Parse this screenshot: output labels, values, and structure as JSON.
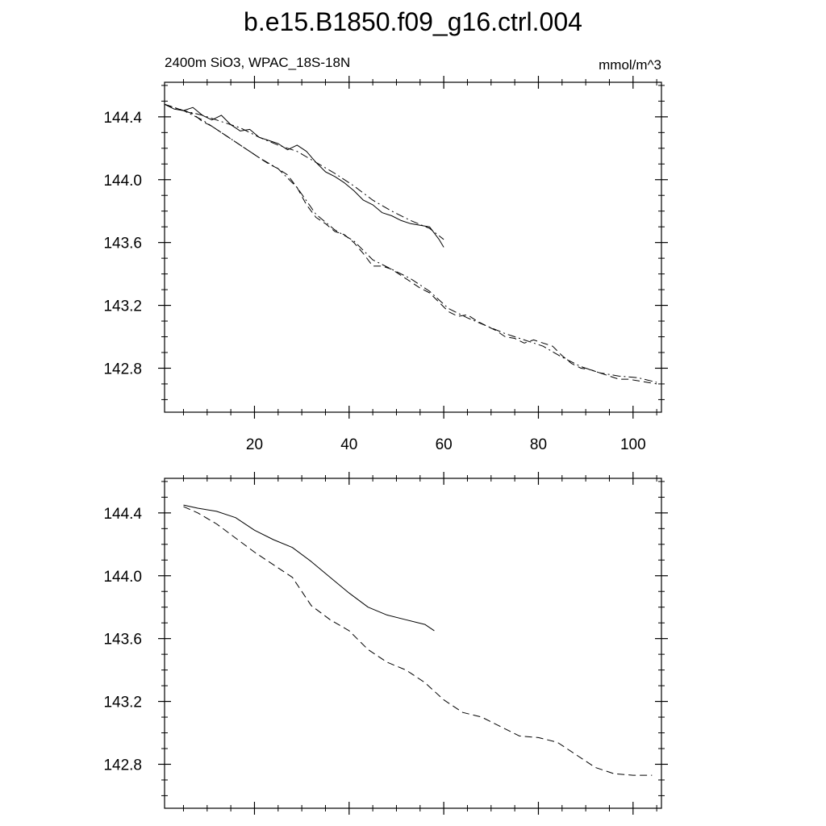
{
  "title": "b.e15.B1850.f09_g16.ctrl.004",
  "left_label": "2400m SiO3, WPAC_18S-18N",
  "right_label": "mmol/m^3",
  "chart_data": [
    {
      "type": "line",
      "panel": "top",
      "xlim": [
        1,
        106
      ],
      "ylim": [
        142.52,
        144.62
      ],
      "x_ticks": [
        20,
        40,
        60,
        80,
        100
      ],
      "x_tick_labels": [
        "20",
        "40",
        "60",
        "80",
        "100"
      ],
      "y_ticks": [
        142.8,
        143.2,
        143.6,
        144.0,
        144.4
      ],
      "y_tick_labels": [
        "142.8",
        "143.2",
        "143.6",
        "144.0",
        "144.4"
      ],
      "grid": false,
      "series": [
        {
          "style": "solid",
          "x": [
            1,
            3,
            5,
            7,
            9,
            11,
            13,
            15,
            17,
            19,
            21,
            23,
            25,
            27,
            29,
            31,
            33,
            35,
            37,
            39,
            41,
            43,
            45,
            47,
            49,
            51,
            53,
            55,
            57,
            59,
            60
          ],
          "y": [
            144.48,
            144.45,
            144.44,
            144.46,
            144.41,
            144.38,
            144.41,
            144.35,
            144.31,
            144.32,
            144.27,
            144.25,
            144.23,
            144.19,
            144.22,
            144.18,
            144.11,
            144.05,
            144.02,
            143.98,
            143.93,
            143.87,
            143.84,
            143.79,
            143.77,
            143.74,
            143.72,
            143.71,
            143.7,
            143.62,
            143.57
          ]
        },
        {
          "style": "dash-dot",
          "x": [
            1,
            5,
            9,
            13,
            17,
            21,
            25,
            29,
            33,
            37,
            41,
            45,
            49,
            53,
            57,
            60
          ],
          "y": [
            144.48,
            144.44,
            144.41,
            144.37,
            144.33,
            144.27,
            144.22,
            144.18,
            144.11,
            144.04,
            143.96,
            143.87,
            143.8,
            143.74,
            143.69,
            143.62
          ]
        },
        {
          "style": "dashed",
          "x": [
            1,
            3,
            5,
            7,
            9,
            11,
            13,
            15,
            17,
            19,
            21,
            23,
            25,
            27,
            29,
            31,
            33,
            35,
            37,
            39,
            41,
            43,
            45,
            47,
            49,
            51,
            53,
            55,
            57,
            59,
            61,
            63,
            65,
            67,
            69,
            71,
            73,
            75,
            77,
            79,
            81,
            83,
            85,
            87,
            89,
            91,
            93,
            95,
            97,
            99,
            101,
            103,
            105
          ],
          "y": [
            144.48,
            144.46,
            144.44,
            144.42,
            144.37,
            144.34,
            144.3,
            144.26,
            144.22,
            144.18,
            144.14,
            144.1,
            144.07,
            144.03,
            143.95,
            143.84,
            143.76,
            143.72,
            143.67,
            143.65,
            143.6,
            143.53,
            143.45,
            143.45,
            143.43,
            143.39,
            143.35,
            143.31,
            143.28,
            143.22,
            143.16,
            143.13,
            143.14,
            143.1,
            143.07,
            143.04,
            143.0,
            142.99,
            142.96,
            142.98,
            142.96,
            142.94,
            142.88,
            142.83,
            142.8,
            142.79,
            142.77,
            142.75,
            142.73,
            142.73,
            142.72,
            142.71,
            142.7
          ]
        },
        {
          "style": "dash-dot",
          "x": [
            1,
            5,
            9,
            13,
            17,
            21,
            25,
            29,
            33,
            37,
            41,
            45,
            49,
            53,
            57,
            61,
            65,
            69,
            73,
            77,
            81,
            85,
            89,
            93,
            97,
            101,
            105
          ],
          "y": [
            144.48,
            144.44,
            144.38,
            144.3,
            144.22,
            144.14,
            144.07,
            143.95,
            143.78,
            143.68,
            143.61,
            143.49,
            143.43,
            143.37,
            143.29,
            143.18,
            143.12,
            143.07,
            143.02,
            142.98,
            142.94,
            142.87,
            142.81,
            142.77,
            142.75,
            142.74,
            142.71
          ]
        }
      ]
    },
    {
      "type": "line",
      "panel": "bottom",
      "xlim": [
        1,
        106
      ],
      "ylim": [
        142.52,
        144.62
      ],
      "y_ticks": [
        142.8,
        143.2,
        143.6,
        144.0,
        144.4
      ],
      "y_tick_labels": [
        "142.8",
        "143.2",
        "143.6",
        "144.0",
        "144.4"
      ],
      "x_ticks": [
        20,
        40,
        60,
        80,
        100
      ],
      "grid": false,
      "series": [
        {
          "style": "solid",
          "x": [
            5,
            8,
            12,
            16,
            20,
            24,
            28,
            32,
            36,
            40,
            44,
            48,
            52,
            56,
            58
          ],
          "y": [
            144.45,
            144.43,
            144.41,
            144.37,
            144.29,
            144.23,
            144.18,
            144.09,
            143.99,
            143.89,
            143.8,
            143.75,
            143.72,
            143.69,
            143.65
          ]
        },
        {
          "style": "dashed",
          "x": [
            5,
            8,
            12,
            16,
            20,
            24,
            28,
            32,
            36,
            40,
            44,
            48,
            52,
            56,
            60,
            64,
            68,
            72,
            76,
            80,
            84,
            88,
            92,
            96,
            100,
            104
          ],
          "y": [
            144.44,
            144.4,
            144.33,
            144.24,
            144.15,
            144.07,
            143.99,
            143.81,
            143.72,
            143.65,
            143.53,
            143.45,
            143.4,
            143.32,
            143.21,
            143.13,
            143.1,
            143.04,
            142.98,
            142.97,
            142.94,
            142.86,
            142.78,
            142.74,
            142.73,
            142.73
          ]
        }
      ]
    }
  ]
}
